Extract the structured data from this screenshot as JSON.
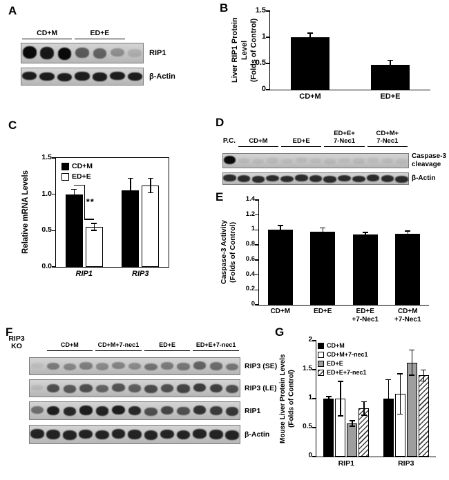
{
  "figure": {
    "panel_labels": {
      "A": "A",
      "B": "B",
      "C": "C",
      "D": "D",
      "E": "E",
      "F": "F",
      "G": "G"
    }
  },
  "panel_A": {
    "groups": [
      [
        "CD+M"
      ],
      [
        "ED+E"
      ]
    ],
    "rows": [
      {
        "label": [
          "RIP1"
        ],
        "bands": [
          0.95,
          0.88,
          0.95,
          0.55,
          0.5,
          0.28,
          0.12
        ]
      },
      {
        "label": [
          "β-Actin"
        ],
        "bands": [
          0.85,
          0.85,
          0.85,
          0.85,
          0.85,
          0.85,
          0.85
        ]
      }
    ]
  },
  "panel_D": {
    "pre_label": [
      "P.C."
    ],
    "groups": [
      [
        "CD+M"
      ],
      [
        "ED+E"
      ],
      [
        "ED+E+",
        "7-Nec1"
      ],
      [
        "CD+M+",
        "7-Nec1"
      ]
    ],
    "rows": [
      {
        "label": [
          "Caspase-3",
          "cleavage"
        ],
        "bands": [
          0.95,
          0.06,
          0.05,
          0.06,
          0.05,
          0.06,
          0.05,
          0.06,
          0.05,
          0.06,
          0.05,
          0.06,
          0.05
        ]
      },
      {
        "label": [
          "β-Actin"
        ],
        "bands": [
          0.78,
          0.78,
          0.78,
          0.78,
          0.78,
          0.78,
          0.78,
          0.78,
          0.78,
          0.78,
          0.78,
          0.78,
          0.78
        ]
      }
    ]
  },
  "panel_F": {
    "pre_label": [
      "RIP3",
      "KO"
    ],
    "groups": [
      [
        "CD+M"
      ],
      [
        "CD+M+7-nec1"
      ],
      [
        "ED+E"
      ],
      [
        "ED+E+7-nec1"
      ]
    ],
    "rows": [
      {
        "label": [
          "RIP3 (SE)"
        ],
        "bands": [
          0.05,
          0.38,
          0.32,
          0.36,
          0.3,
          0.34,
          0.3,
          0.42,
          0.38,
          0.4,
          0.5,
          0.45,
          0.4
        ]
      },
      {
        "label": [
          "RIP3 (LE)"
        ],
        "bands": [
          0.07,
          0.6,
          0.55,
          0.6,
          0.5,
          0.58,
          0.52,
          0.62,
          0.6,
          0.65,
          0.7,
          0.68,
          0.6
        ]
      },
      {
        "label": [
          "RIP1"
        ],
        "bands": [
          0.45,
          0.85,
          0.8,
          0.85,
          0.82,
          0.85,
          0.8,
          0.6,
          0.65,
          0.6,
          0.75,
          0.7,
          0.72
        ]
      },
      {
        "label": [
          "β-Actin"
        ],
        "bands": [
          0.82,
          0.82,
          0.82,
          0.82,
          0.82,
          0.82,
          0.82,
          0.82,
          0.82,
          0.82,
          0.82,
          0.82,
          0.82
        ]
      }
    ]
  },
  "chart_data": [
    {
      "id": "B",
      "panel": "B",
      "type": "bar",
      "ylabel": [
        "Liver RIP1 Protein Level",
        "(Folds of Control)"
      ],
      "ylim": [
        0,
        1.5
      ],
      "yticks": [
        0,
        0.5,
        1,
        1.5
      ],
      "ytick_labels": [
        "0",
        "0.5",
        "1",
        "1.5"
      ],
      "categories": [
        "CD+M",
        "ED+E"
      ],
      "series": [
        {
          "name": "",
          "fill": "black",
          "values": [
            1.0,
            0.47
          ],
          "errors": [
            0.08,
            0.09
          ]
        }
      ],
      "legend": false,
      "grid": false
    },
    {
      "id": "C",
      "panel": "C",
      "type": "bar",
      "ylabel": [
        "Relative mRNA Levels"
      ],
      "ylim": [
        0,
        1.5
      ],
      "yticks": [
        0,
        0.5,
        1,
        1.5
      ],
      "ytick_labels": [
        "0.0",
        "0.5",
        "1.0",
        "1.5"
      ],
      "categories": [
        "RIP1",
        "RIP3"
      ],
      "categories_italic": true,
      "series": [
        {
          "name": "CD+M",
          "fill": "black",
          "values": [
            1.0,
            1.05
          ],
          "errors": [
            0.07,
            0.17
          ]
        },
        {
          "name": "ED+E",
          "fill": "white",
          "values": [
            0.55,
            1.12
          ],
          "errors": [
            0.05,
            0.1
          ]
        }
      ],
      "annotation": {
        "text": "**",
        "category": 0
      },
      "legend": true,
      "legend_position": "top-left",
      "grid": false
    },
    {
      "id": "E",
      "panel": "E",
      "type": "bar",
      "ylabel": [
        "Caspase-3 Activity",
        "(Folds of Control)"
      ],
      "ylim": [
        0,
        1.4
      ],
      "yticks": [
        0,
        0.2,
        0.4,
        0.6,
        0.8,
        1,
        1.2,
        1.4
      ],
      "ytick_labels": [
        "0",
        "0.2",
        "0.4",
        "0.6",
        "0.8",
        "1",
        "1.2",
        "1.4"
      ],
      "categories": [
        [
          "CD+M"
        ],
        [
          "ED+E"
        ],
        [
          "ED+E",
          "+7-Nec1"
        ],
        [
          "CD+M",
          "+7-Nec1"
        ]
      ],
      "series": [
        {
          "name": "",
          "fill": "black",
          "values": [
            1.0,
            0.98,
            0.94,
            0.95
          ],
          "errors": [
            0.06,
            0.05,
            0.03,
            0.04
          ]
        }
      ],
      "legend": false,
      "grid": false
    },
    {
      "id": "G",
      "panel": "G",
      "type": "bar",
      "ylabel": [
        "Mouse Liver  Protein Levels",
        "(Folds of Control)"
      ],
      "ylim": [
        0,
        2
      ],
      "yticks": [
        0,
        0.5,
        1,
        1.5,
        2
      ],
      "ytick_labels": [
        "0",
        "0.5",
        "1",
        "1.5",
        "2"
      ],
      "categories": [
        "RIP1",
        "RIP3"
      ],
      "series": [
        {
          "name": "CD+M",
          "fill": "black",
          "values": [
            1.0,
            1.0
          ],
          "errors": [
            0.04,
            0.33
          ]
        },
        {
          "name": "CD+M+7-nec1",
          "fill": "white",
          "values": [
            1.0,
            1.08
          ],
          "errors": [
            0.3,
            0.35
          ]
        },
        {
          "name": "ED+E",
          "fill": "gray",
          "values": [
            0.57,
            1.62
          ],
          "errors": [
            0.05,
            0.22
          ]
        },
        {
          "name": "ED+E+7-nec1",
          "fill": "hatch",
          "values": [
            0.83,
            1.4
          ],
          "errors": [
            0.12,
            0.1
          ]
        }
      ],
      "legend": true,
      "legend_position": "top-left",
      "grid": false
    }
  ]
}
